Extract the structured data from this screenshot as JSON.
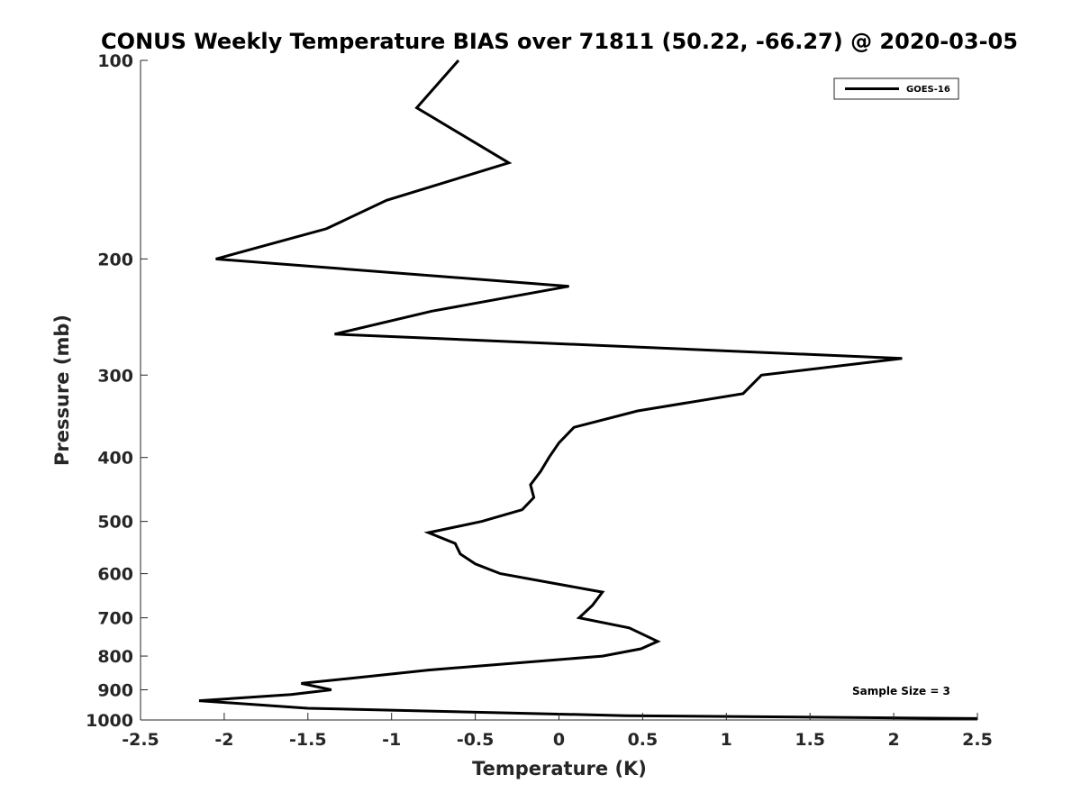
{
  "chart_data": {
    "type": "line",
    "title": "CONUS Weekly Temperature BIAS over 71811 (50.22, -66.27) @ 2020-03-05",
    "xlabel": "Temperature (K)",
    "ylabel": "Pressure (mb)",
    "xlim": [
      -2.5,
      2.5
    ],
    "ylim": [
      100,
      1000
    ],
    "yscale": "log",
    "y_reversed": true,
    "grid": false,
    "legend_position": "top-right",
    "xticks": [
      -2.5,
      -2,
      -1.5,
      -1,
      -0.5,
      0,
      0.5,
      1,
      1.5,
      2,
      2.5
    ],
    "xtick_labels": [
      "-2.5",
      "-2",
      "-1.5",
      "-1",
      "-0.5",
      "0",
      "0.5",
      "1",
      "1.5",
      "2",
      "2.5"
    ],
    "yticks": [
      100,
      200,
      300,
      400,
      500,
      600,
      700,
      800,
      900,
      1000
    ],
    "ytick_labels": [
      "100",
      "200",
      "300",
      "400",
      "500",
      "600",
      "700",
      "800",
      "900",
      "1000"
    ],
    "series": [
      {
        "name": "GOES-16",
        "color": "#000000",
        "points": [
          {
            "temp": -0.6,
            "pressure": 100
          },
          {
            "temp": -0.85,
            "pressure": 118
          },
          {
            "temp": -0.3,
            "pressure": 143
          },
          {
            "temp": -1.03,
            "pressure": 163
          },
          {
            "temp": -1.39,
            "pressure": 180
          },
          {
            "temp": -2.05,
            "pressure": 200
          },
          {
            "temp": 0.06,
            "pressure": 220
          },
          {
            "temp": -0.76,
            "pressure": 240
          },
          {
            "temp": -1.34,
            "pressure": 260
          },
          {
            "temp": 2.05,
            "pressure": 283
          },
          {
            "temp": 1.21,
            "pressure": 300
          },
          {
            "temp": 1.1,
            "pressure": 320
          },
          {
            "temp": 0.47,
            "pressure": 340
          },
          {
            "temp": 0.09,
            "pressure": 360
          },
          {
            "temp": 0.0,
            "pressure": 380
          },
          {
            "temp": -0.06,
            "pressure": 400
          },
          {
            "temp": -0.11,
            "pressure": 420
          },
          {
            "temp": -0.17,
            "pressure": 440
          },
          {
            "temp": -0.15,
            "pressure": 460
          },
          {
            "temp": -0.22,
            "pressure": 480
          },
          {
            "temp": -0.46,
            "pressure": 500
          },
          {
            "temp": -0.78,
            "pressure": 520
          },
          {
            "temp": -0.62,
            "pressure": 540
          },
          {
            "temp": -0.59,
            "pressure": 560
          },
          {
            "temp": -0.5,
            "pressure": 580
          },
          {
            "temp": -0.35,
            "pressure": 600
          },
          {
            "temp": 0.26,
            "pressure": 640
          },
          {
            "temp": 0.2,
            "pressure": 670
          },
          {
            "temp": 0.12,
            "pressure": 700
          },
          {
            "temp": 0.42,
            "pressure": 725
          },
          {
            "temp": 0.59,
            "pressure": 760
          },
          {
            "temp": 0.49,
            "pressure": 780
          },
          {
            "temp": 0.26,
            "pressure": 800
          },
          {
            "temp": -0.78,
            "pressure": 840
          },
          {
            "temp": -1.25,
            "pressure": 865
          },
          {
            "temp": -1.54,
            "pressure": 880
          },
          {
            "temp": -1.36,
            "pressure": 900
          },
          {
            "temp": -1.6,
            "pressure": 915
          },
          {
            "temp": -2.15,
            "pressure": 935
          },
          {
            "temp": -1.5,
            "pressure": 960
          },
          {
            "temp": 0.4,
            "pressure": 985
          },
          {
            "temp": 2.5,
            "pressure": 995
          }
        ]
      }
    ],
    "legend": [
      {
        "label": "GOES-16",
        "color": "#000000"
      }
    ],
    "annotation": "Sample Size = 3"
  }
}
